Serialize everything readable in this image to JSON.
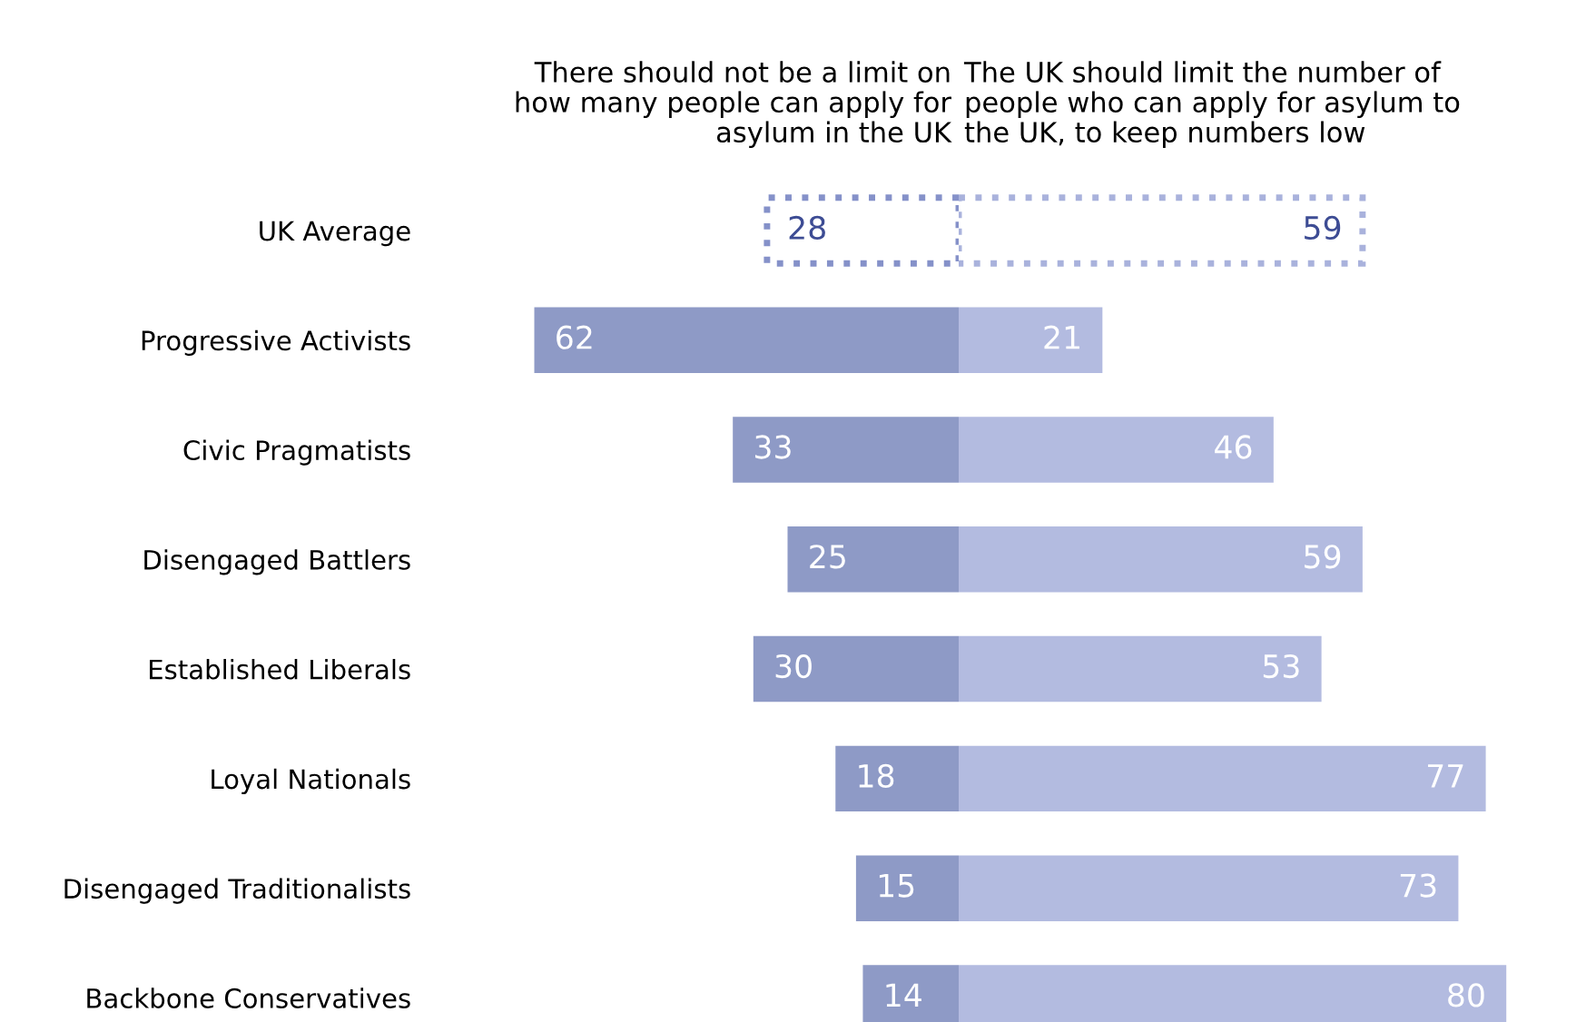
{
  "chart_data": [
    {
      "type": "bar",
      "orientation": "horizontal",
      "legend": false,
      "grid": false,
      "tick_labels": "y",
      "data_labels": true,
      "title": "There should not be a limit on\nhow many people can apply for\nasylum in the UK",
      "categories": [
        "UK Average",
        "Progressive Activists",
        "Civic Pragmatists",
        "Disengaged Battlers",
        "Established Liberals",
        "Loyal Nationals",
        "Disengaged Traditionalists",
        "Backbone Conservatives"
      ],
      "series": [
        {
          "color": "#8591c9",
          "line_style": "dotted",
          "values": [
            28,
            null,
            null,
            null,
            null,
            null,
            null,
            null
          ]
        },
        {
          "color": "#8e9ac6",
          "values": [
            null,
            62,
            33,
            25,
            30,
            18,
            15,
            14
          ]
        }
      ]
    },
    {
      "type": "bar",
      "orientation": "horizontal",
      "legend": false,
      "grid": false,
      "tick_labels": false,
      "data_labels": true,
      "title": "The UK should limit the number of\npeople who can apply for asylum to\nthe UK, to keep numbers low",
      "categories": [
        null,
        null,
        null,
        null,
        null,
        null,
        null,
        null
      ],
      "series": [
        {
          "color": "#a9b2dc",
          "line_style": "dotted",
          "values": [
            59,
            null,
            null,
            null,
            null,
            null,
            null,
            null
          ]
        },
        {
          "color": "#b3bbe0",
          "values": [
            null,
            21,
            46,
            59,
            53,
            77,
            73,
            80
          ]
        }
      ]
    }
  ]
}
